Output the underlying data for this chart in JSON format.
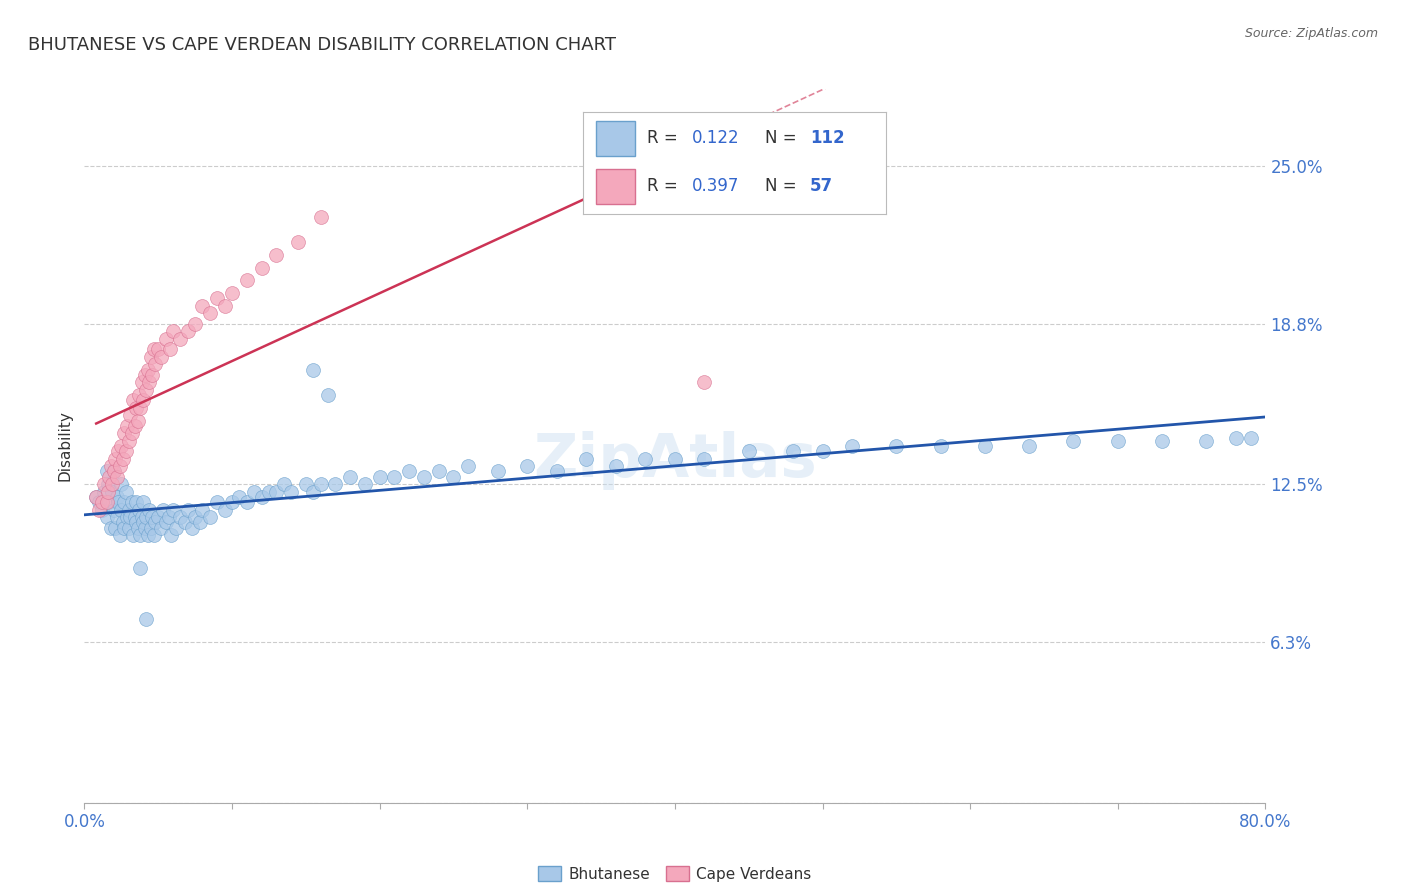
{
  "title": "BHUTANESE VS CAPE VERDEAN DISABILITY CORRELATION CHART",
  "source": "Source: ZipAtlas.com",
  "ylabel": "Disability",
  "xlim": [
    0.0,
    0.8
  ],
  "ylim": [
    0.0,
    0.28
  ],
  "ytick_vals": [
    0.0,
    0.063,
    0.125,
    0.188,
    0.25
  ],
  "ytick_labels": [
    "",
    "6.3%",
    "12.5%",
    "18.8%",
    "25.0%"
  ],
  "grid_color": "#cccccc",
  "bg_color": "#ffffff",
  "blue_color": "#a8c8e8",
  "pink_color": "#f4a8bc",
  "blue_edge_color": "#6aa0cc",
  "pink_edge_color": "#d87090",
  "blue_line_color": "#2255aa",
  "pink_line_color": "#cc3355",
  "R_blue": 0.122,
  "N_blue": 112,
  "R_pink": 0.397,
  "N_pink": 57,
  "blue_scatter_x": [
    0.008,
    0.01,
    0.012,
    0.013,
    0.015,
    0.015,
    0.016,
    0.017,
    0.018,
    0.019,
    0.02,
    0.02,
    0.021,
    0.022,
    0.022,
    0.023,
    0.024,
    0.025,
    0.025,
    0.026,
    0.027,
    0.027,
    0.028,
    0.029,
    0.03,
    0.03,
    0.031,
    0.032,
    0.033,
    0.034,
    0.035,
    0.035,
    0.036,
    0.037,
    0.038,
    0.039,
    0.04,
    0.04,
    0.041,
    0.042,
    0.043,
    0.044,
    0.045,
    0.046,
    0.047,
    0.048,
    0.05,
    0.052,
    0.053,
    0.055,
    0.057,
    0.059,
    0.06,
    0.062,
    0.065,
    0.068,
    0.07,
    0.073,
    0.075,
    0.078,
    0.08,
    0.085,
    0.09,
    0.095,
    0.1,
    0.105,
    0.11,
    0.115,
    0.12,
    0.125,
    0.13,
    0.135,
    0.14,
    0.15,
    0.155,
    0.16,
    0.17,
    0.18,
    0.19,
    0.2,
    0.21,
    0.22,
    0.23,
    0.24,
    0.25,
    0.26,
    0.28,
    0.3,
    0.32,
    0.34,
    0.36,
    0.38,
    0.4,
    0.42,
    0.45,
    0.48,
    0.5,
    0.52,
    0.55,
    0.58,
    0.61,
    0.64,
    0.67,
    0.7,
    0.73,
    0.76,
    0.78,
    0.79,
    0.038,
    0.042,
    0.155,
    0.165
  ],
  "blue_scatter_y": [
    0.12,
    0.118,
    0.115,
    0.122,
    0.13,
    0.112,
    0.125,
    0.118,
    0.108,
    0.122,
    0.115,
    0.13,
    0.108,
    0.12,
    0.112,
    0.118,
    0.105,
    0.115,
    0.125,
    0.11,
    0.118,
    0.108,
    0.122,
    0.112,
    0.115,
    0.108,
    0.112,
    0.118,
    0.105,
    0.112,
    0.11,
    0.118,
    0.108,
    0.115,
    0.105,
    0.112,
    0.11,
    0.118,
    0.108,
    0.112,
    0.105,
    0.115,
    0.108,
    0.112,
    0.105,
    0.11,
    0.112,
    0.108,
    0.115,
    0.11,
    0.112,
    0.105,
    0.115,
    0.108,
    0.112,
    0.11,
    0.115,
    0.108,
    0.112,
    0.11,
    0.115,
    0.112,
    0.118,
    0.115,
    0.118,
    0.12,
    0.118,
    0.122,
    0.12,
    0.122,
    0.122,
    0.125,
    0.122,
    0.125,
    0.122,
    0.125,
    0.125,
    0.128,
    0.125,
    0.128,
    0.128,
    0.13,
    0.128,
    0.13,
    0.128,
    0.132,
    0.13,
    0.132,
    0.13,
    0.135,
    0.132,
    0.135,
    0.135,
    0.135,
    0.138,
    0.138,
    0.138,
    0.14,
    0.14,
    0.14,
    0.14,
    0.14,
    0.142,
    0.142,
    0.142,
    0.142,
    0.143,
    0.143,
    0.092,
    0.072,
    0.17,
    0.16
  ],
  "pink_scatter_x": [
    0.008,
    0.01,
    0.012,
    0.013,
    0.015,
    0.016,
    0.017,
    0.018,
    0.019,
    0.02,
    0.021,
    0.022,
    0.023,
    0.024,
    0.025,
    0.026,
    0.027,
    0.028,
    0.029,
    0.03,
    0.031,
    0.032,
    0.033,
    0.034,
    0.035,
    0.036,
    0.037,
    0.038,
    0.039,
    0.04,
    0.041,
    0.042,
    0.043,
    0.044,
    0.045,
    0.046,
    0.047,
    0.048,
    0.05,
    0.052,
    0.055,
    0.058,
    0.06,
    0.065,
    0.07,
    0.075,
    0.08,
    0.085,
    0.09,
    0.095,
    0.1,
    0.11,
    0.12,
    0.13,
    0.145,
    0.16,
    0.42
  ],
  "pink_scatter_y": [
    0.12,
    0.115,
    0.118,
    0.125,
    0.118,
    0.122,
    0.128,
    0.132,
    0.125,
    0.13,
    0.135,
    0.128,
    0.138,
    0.132,
    0.14,
    0.135,
    0.145,
    0.138,
    0.148,
    0.142,
    0.152,
    0.145,
    0.158,
    0.148,
    0.155,
    0.15,
    0.16,
    0.155,
    0.165,
    0.158,
    0.168,
    0.162,
    0.17,
    0.165,
    0.175,
    0.168,
    0.178,
    0.172,
    0.178,
    0.175,
    0.182,
    0.178,
    0.185,
    0.182,
    0.185,
    0.188,
    0.195,
    0.192,
    0.198,
    0.195,
    0.2,
    0.205,
    0.21,
    0.215,
    0.22,
    0.23,
    0.165
  ]
}
